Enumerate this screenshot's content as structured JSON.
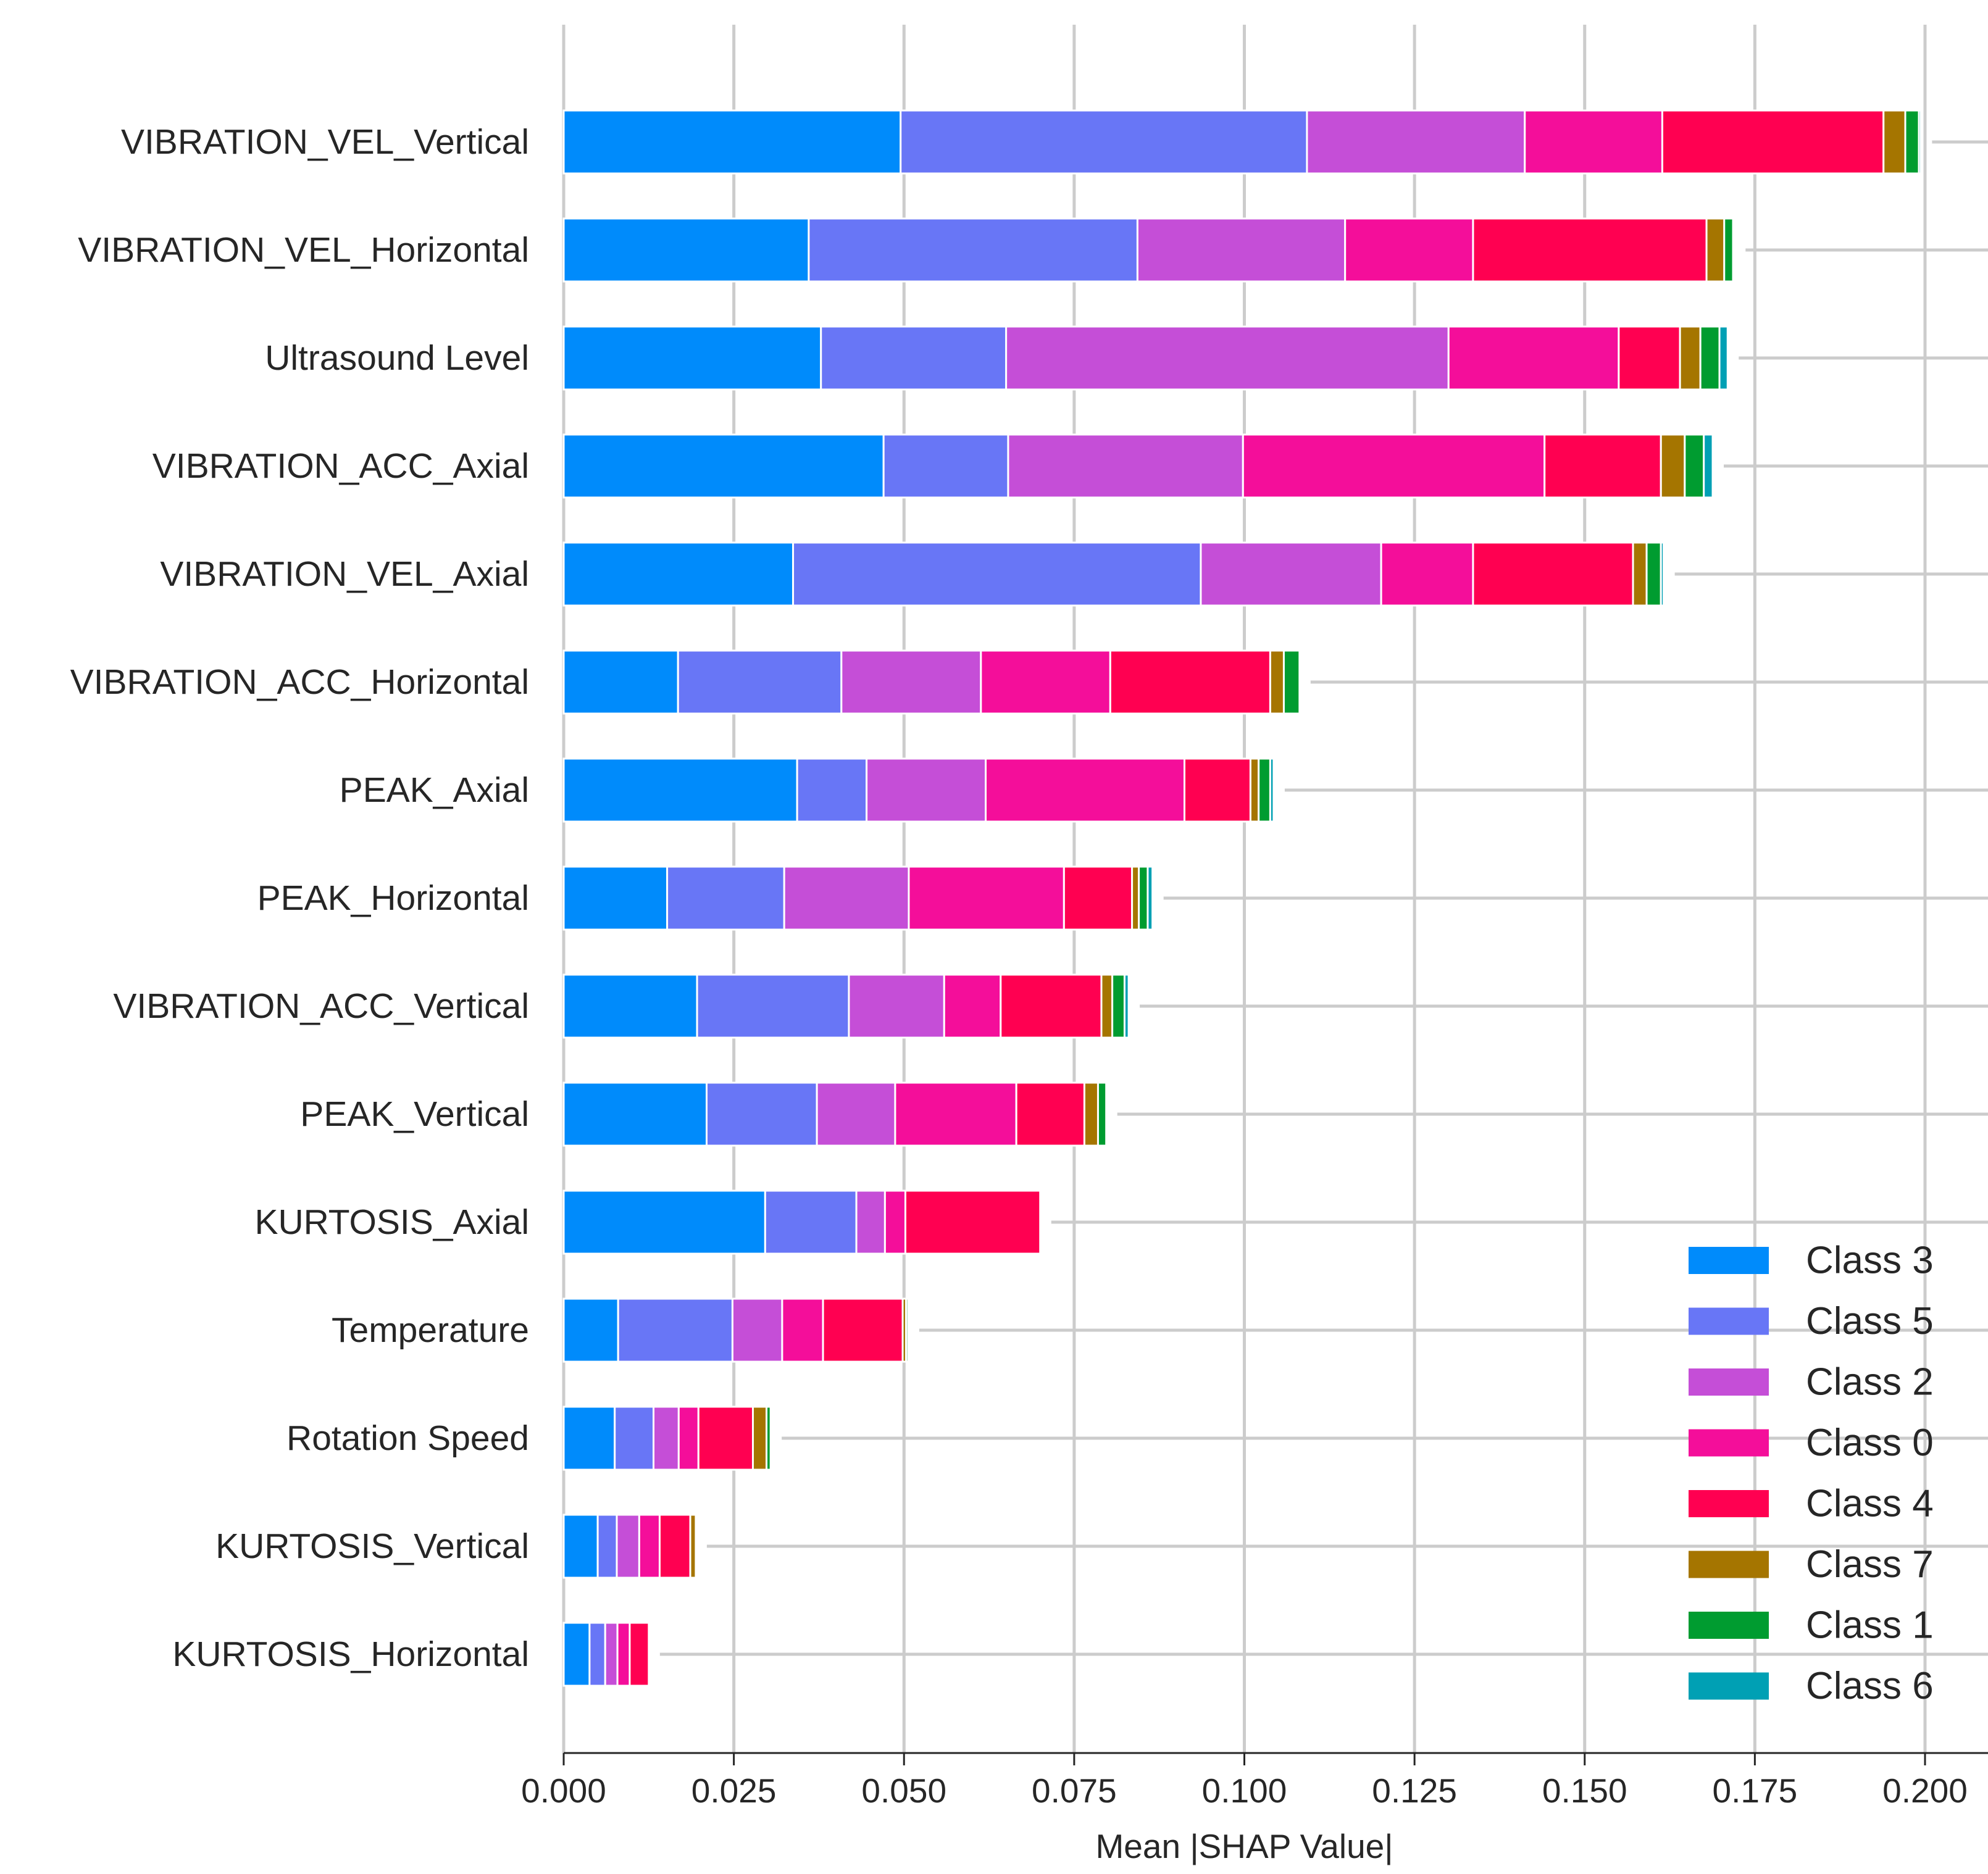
{
  "chart_data": {
    "type": "bar",
    "orientation": "horizontal",
    "stacked": true,
    "title": "",
    "xlabel": "Mean |SHAP Value|",
    "ylabel": "",
    "xlim": [
      0,
      0.21
    ],
    "xticks": [
      "0.000",
      "0.025",
      "0.050",
      "0.075",
      "0.100",
      "0.125",
      "0.150",
      "0.175",
      "0.200"
    ],
    "xtick_values": [
      0,
      0.025,
      0.05,
      0.075,
      0.1,
      0.125,
      0.15,
      0.175,
      0.2
    ],
    "grid": true,
    "legend_position": "bottom-right",
    "categories": [
      "VIBRATION_VEL_Vertical",
      "VIBRATION_VEL_Horizontal",
      "Ultrasound Level",
      "VIBRATION_ACC_Axial",
      "VIBRATION_VEL_Axial",
      "VIBRATION_ACC_Horizontal",
      "PEAK_Axial",
      "PEAK_Horizontal",
      "VIBRATION_ACC_Vertical",
      "PEAK_Vertical",
      "KURTOSIS_Axial",
      "Temperature",
      "Rotation Speed",
      "KURTOSIS_Vertical",
      "KURTOSIS_Horizontal"
    ],
    "series": [
      {
        "name": "Class 3",
        "color": "#008bfb",
        "values": [
          0.0495,
          0.036,
          0.0378,
          0.047,
          0.0337,
          0.0168,
          0.0343,
          0.0152,
          0.0196,
          0.021,
          0.0296,
          0.008,
          0.0075,
          0.005,
          0.0038
        ]
      },
      {
        "name": "Class 5",
        "color": "#6876f6",
        "values": [
          0.0597,
          0.0483,
          0.0272,
          0.0183,
          0.0599,
          0.024,
          0.0102,
          0.0172,
          0.0223,
          0.0162,
          0.0134,
          0.0168,
          0.0057,
          0.0028,
          0.0023
        ]
      },
      {
        "name": "Class 2",
        "color": "#c54ed7",
        "values": [
          0.032,
          0.0305,
          0.065,
          0.0345,
          0.0265,
          0.0205,
          0.0175,
          0.0183,
          0.014,
          0.0115,
          0.0042,
          0.0073,
          0.0037,
          0.0033,
          0.0018
        ]
      },
      {
        "name": "Class 0",
        "color": "#f40e9a",
        "values": [
          0.0202,
          0.0188,
          0.025,
          0.0443,
          0.0135,
          0.019,
          0.0292,
          0.0228,
          0.0083,
          0.0178,
          0.003,
          0.006,
          0.0029,
          0.003,
          0.0018
        ]
      },
      {
        "name": "Class 4",
        "color": "#ff0051",
        "values": [
          0.0325,
          0.0343,
          0.009,
          0.0171,
          0.0235,
          0.0235,
          0.0097,
          0.01,
          0.0148,
          0.01,
          0.0198,
          0.0117,
          0.008,
          0.0045,
          0.0028
        ]
      },
      {
        "name": "Class 7",
        "color": "#a57500",
        "values": [
          0.0032,
          0.0026,
          0.003,
          0.0035,
          0.002,
          0.002,
          0.0012,
          0.001,
          0.0016,
          0.002,
          0.0,
          0.0005,
          0.002,
          0.0008,
          0.0
        ]
      },
      {
        "name": "Class 1",
        "color": "#009c30",
        "values": [
          0.002,
          0.0013,
          0.0028,
          0.0028,
          0.0021,
          0.0023,
          0.0017,
          0.0013,
          0.0018,
          0.0012,
          0.0,
          0.0003,
          0.0006,
          0.0,
          0.0
        ]
      },
      {
        "name": "Class 6",
        "color": "#00a0b4",
        "values": [
          0.0003,
          0.0002,
          0.0012,
          0.0013,
          0.0004,
          0.0,
          0.0005,
          0.0007,
          0.0006,
          0.0,
          0.0,
          0.0,
          0.0,
          0.0,
          0.0
        ]
      }
    ],
    "legend_order": [
      "Class 3",
      "Class 5",
      "Class 2",
      "Class 0",
      "Class 4",
      "Class 7",
      "Class 1",
      "Class 6"
    ]
  }
}
